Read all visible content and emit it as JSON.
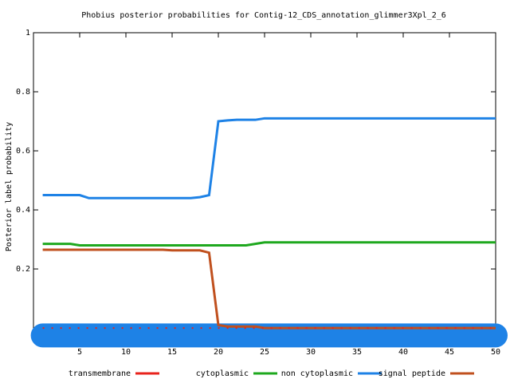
{
  "chart_data": {
    "type": "line",
    "title": "Phobius posterior probabilities for Contig-12_CDS_annotation_glimmer3Xpl_2_6",
    "ylabel": "Posterior label probability",
    "x": [
      1,
      2,
      3,
      4,
      5,
      6,
      7,
      8,
      9,
      10,
      11,
      12,
      13,
      14,
      15,
      16,
      17,
      18,
      19,
      20,
      21,
      22,
      23,
      24,
      25,
      26,
      27,
      28,
      29,
      30,
      31,
      32,
      33,
      34,
      35,
      36,
      37,
      38,
      39,
      40,
      41,
      42,
      43,
      44,
      45,
      46,
      47,
      48,
      49,
      50
    ],
    "series": [
      {
        "name": "transmembrane",
        "color": "#e8231c",
        "dashed": true,
        "values": [
          0,
          0,
          0,
          0,
          0,
          0,
          0,
          0,
          0,
          0,
          0,
          0,
          0,
          0,
          0,
          0,
          0,
          0,
          0,
          0,
          0,
          0,
          0,
          0,
          0,
          0,
          0,
          0,
          0,
          0,
          0,
          0,
          0,
          0,
          0,
          0,
          0,
          0,
          0,
          0,
          0,
          0,
          0,
          0,
          0,
          0,
          0,
          0,
          0,
          0
        ]
      },
      {
        "name": "cytoplasmic",
        "color": "#1ea81e",
        "values": [
          0.285,
          0.285,
          0.285,
          0.285,
          0.28,
          0.28,
          0.28,
          0.28,
          0.28,
          0.28,
          0.28,
          0.28,
          0.28,
          0.28,
          0.28,
          0.28,
          0.28,
          0.28,
          0.28,
          0.28,
          0.28,
          0.28,
          0.28,
          0.285,
          0.29,
          0.29,
          0.29,
          0.29,
          0.29,
          0.29,
          0.29,
          0.29,
          0.29,
          0.29,
          0.29,
          0.29,
          0.29,
          0.29,
          0.29,
          0.29,
          0.29,
          0.29,
          0.29,
          0.29,
          0.29,
          0.29,
          0.29,
          0.29,
          0.29,
          0.29
        ]
      },
      {
        "name": "non cytoplasmic",
        "color": "#1e82e6",
        "values": [
          0.45,
          0.45,
          0.45,
          0.45,
          0.45,
          0.44,
          0.44,
          0.44,
          0.44,
          0.44,
          0.44,
          0.44,
          0.44,
          0.44,
          0.44,
          0.44,
          0.44,
          0.443,
          0.45,
          0.7,
          0.703,
          0.705,
          0.705,
          0.705,
          0.71,
          0.71,
          0.71,
          0.71,
          0.71,
          0.71,
          0.71,
          0.71,
          0.71,
          0.71,
          0.71,
          0.71,
          0.71,
          0.71,
          0.71,
          0.71,
          0.71,
          0.71,
          0.71,
          0.71,
          0.71,
          0.71,
          0.71,
          0.71,
          0.71,
          0.71
        ]
      },
      {
        "name": "signal peptide",
        "color": "#c0501e",
        "values": [
          0.265,
          0.265,
          0.265,
          0.265,
          0.265,
          0.265,
          0.265,
          0.265,
          0.265,
          0.265,
          0.265,
          0.265,
          0.265,
          0.265,
          0.263,
          0.263,
          0.263,
          0.263,
          0.255,
          0.01,
          0.005,
          0.005,
          0.005,
          0.005,
          0,
          0,
          0,
          0,
          0,
          0,
          0,
          0,
          0,
          0,
          0,
          0,
          0,
          0,
          0,
          0,
          0,
          0,
          0,
          0,
          0,
          0,
          0,
          0,
          0,
          0
        ]
      }
    ],
    "band": {
      "x": [
        1,
        50
      ],
      "y": -0.025,
      "color": "#1e82e6"
    },
    "xlim": [
      0,
      50
    ],
    "ylim": [
      -0.043,
      1
    ],
    "xticks": [
      5,
      10,
      15,
      20,
      25,
      30,
      35,
      40,
      45,
      50
    ],
    "yticks": [
      0.2,
      0.4,
      0.6,
      0.8,
      1
    ]
  }
}
